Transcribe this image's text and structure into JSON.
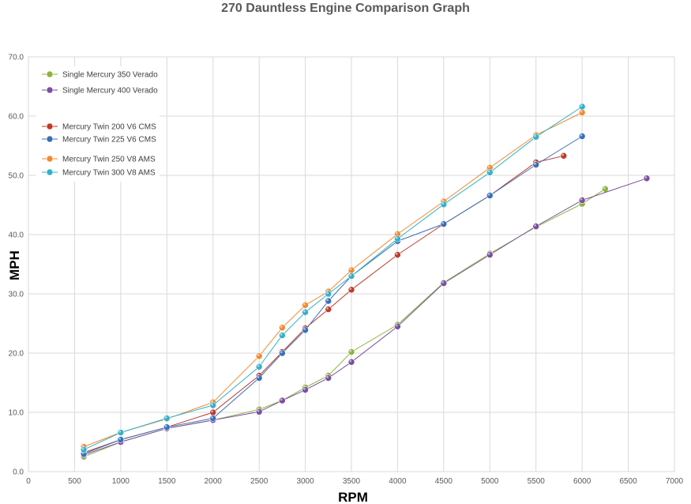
{
  "chart_data": {
    "type": "line",
    "title": "270 Dauntless Engine Comparison Graph",
    "xlabel": "RPM",
    "ylabel": "MPH",
    "xlim": [
      0,
      7000
    ],
    "ylim": [
      0,
      70
    ],
    "x_ticks": [
      "0",
      "500",
      "1000",
      "1500",
      "2000",
      "2500",
      "3000",
      "3500",
      "4000",
      "4500",
      "5000",
      "5500",
      "6000",
      "6500",
      "7000"
    ],
    "y_ticks": [
      "0.0",
      "10.0",
      "20.0",
      "30.0",
      "40.0",
      "50.0",
      "60.0",
      "70.0"
    ],
    "grid": true,
    "legend_position": "top-left",
    "series": [
      {
        "name": "Single Mercury 350 Verado",
        "color": "#8db33a",
        "points": [
          [
            600,
            2.5
          ],
          [
            1000,
            5.0
          ],
          [
            1500,
            7.3
          ],
          [
            2000,
            8.7
          ],
          [
            2500,
            10.5
          ],
          [
            2750,
            12.0
          ],
          [
            3000,
            14.2
          ],
          [
            3250,
            16.2
          ],
          [
            3500,
            20.2
          ],
          [
            4000,
            24.8
          ],
          [
            4500,
            31.9
          ],
          [
            5000,
            36.8
          ],
          [
            5500,
            41.3
          ],
          [
            6000,
            45.2
          ],
          [
            6250,
            47.7
          ]
        ]
      },
      {
        "name": "Single Mercury 400 Verado",
        "color": "#7a4fa0",
        "points": [
          [
            600,
            2.8
          ],
          [
            1000,
            5.0
          ],
          [
            1500,
            7.3
          ],
          [
            2000,
            8.7
          ],
          [
            2500,
            10.1
          ],
          [
            2750,
            12.0
          ],
          [
            3000,
            13.8
          ],
          [
            3250,
            15.8
          ],
          [
            3500,
            18.5
          ],
          [
            4000,
            24.5
          ],
          [
            4500,
            31.8
          ],
          [
            5000,
            36.6
          ],
          [
            5500,
            41.4
          ],
          [
            6000,
            45.8
          ],
          [
            6700,
            49.5
          ]
        ]
      },
      {
        "name": "Mercury Twin 200 V6 CMS",
        "color": "#c0392b",
        "points": [
          [
            600,
            3.2
          ],
          [
            1000,
            5.4
          ],
          [
            1500,
            7.5
          ],
          [
            2000,
            10.0
          ],
          [
            2500,
            16.2
          ],
          [
            2750,
            20.2
          ],
          [
            3000,
            24.2
          ],
          [
            3250,
            27.4
          ],
          [
            3500,
            30.7
          ],
          [
            4000,
            36.6
          ],
          [
            4500,
            41.8
          ],
          [
            5000,
            46.6
          ],
          [
            5500,
            52.2
          ],
          [
            5800,
            53.3
          ]
        ]
      },
      {
        "name": "Mercury Twin 225 V6 CMS",
        "color": "#3a6fb8",
        "points": [
          [
            600,
            3.0
          ],
          [
            1000,
            5.4
          ],
          [
            1500,
            7.5
          ],
          [
            2000,
            9.0
          ],
          [
            2500,
            15.8
          ],
          [
            2750,
            20.0
          ],
          [
            3000,
            23.9
          ],
          [
            3250,
            28.8
          ],
          [
            3500,
            33.0
          ],
          [
            4000,
            38.9
          ],
          [
            4500,
            41.8
          ],
          [
            5000,
            46.6
          ],
          [
            5500,
            51.8
          ],
          [
            6000,
            56.6
          ]
        ]
      },
      {
        "name": "Mercury Twin 250 V8 AMS",
        "color": "#f08a30",
        "points": [
          [
            600,
            4.2
          ],
          [
            1000,
            6.6
          ],
          [
            1500,
            8.9
          ],
          [
            2000,
            11.7
          ],
          [
            2500,
            19.5
          ],
          [
            2750,
            24.3
          ],
          [
            3000,
            28.1
          ],
          [
            3250,
            30.4
          ],
          [
            3500,
            34.0
          ],
          [
            4000,
            40.1
          ],
          [
            4500,
            45.6
          ],
          [
            5000,
            51.3
          ],
          [
            5500,
            56.8
          ],
          [
            6000,
            60.6
          ]
        ]
      },
      {
        "name": "Mercury Twin 300 V8 AMS",
        "color": "#35b0c9",
        "points": [
          [
            600,
            3.7
          ],
          [
            1000,
            6.6
          ],
          [
            1500,
            9.0
          ],
          [
            2000,
            11.2
          ],
          [
            2500,
            17.7
          ],
          [
            2750,
            23.0
          ],
          [
            3000,
            26.9
          ],
          [
            3250,
            30.0
          ],
          [
            3500,
            33.0
          ],
          [
            4000,
            39.3
          ],
          [
            4500,
            45.1
          ],
          [
            5000,
            50.5
          ],
          [
            5500,
            56.5
          ],
          [
            6000,
            61.6
          ]
        ]
      }
    ]
  }
}
